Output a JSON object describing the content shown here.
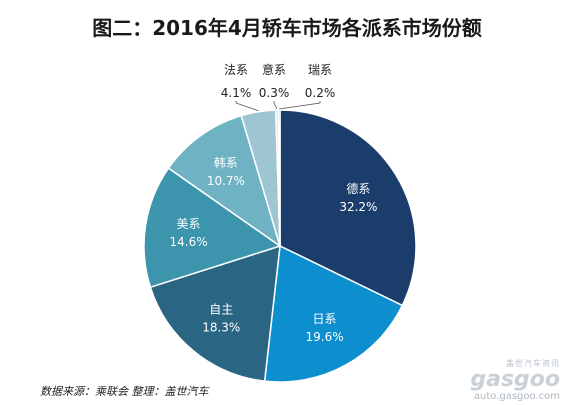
{
  "chart_data": {
    "type": "pie",
    "title": "图二：2016年4月轿车市场各派系市场份额",
    "slices": [
      {
        "label": "德系",
        "value": 32.2,
        "text": "32.2%",
        "color": "#1b3d6b"
      },
      {
        "label": "日系",
        "value": 19.6,
        "text": "19.6%",
        "color": "#0d8fcf"
      },
      {
        "label": "自主",
        "value": 18.3,
        "text": "18.3%",
        "color": "#2a6683"
      },
      {
        "label": "美系",
        "value": 14.6,
        "text": "14.6%",
        "color": "#3c94ad"
      },
      {
        "label": "韩系",
        "value": 10.7,
        "text": "10.7%",
        "color": "#6fb2c3"
      },
      {
        "label": "法系",
        "value": 4.1,
        "text": "4.1%",
        "color": "#9ec6d2"
      },
      {
        "label": "意系",
        "value": 0.3,
        "text": "0.3%",
        "color": "#c5dfe6"
      },
      {
        "label": "瑞系",
        "value": 0.2,
        "text": "0.2%",
        "color": "#4aa3d4"
      }
    ]
  },
  "footer": {
    "source": "数据来源：乘联会",
    "compiler": "整理：盖世汽车"
  },
  "watermark": {
    "tagline": "盖世汽车资讯",
    "logo": "gasgoo",
    "url": "auto.gasgoo.com"
  }
}
